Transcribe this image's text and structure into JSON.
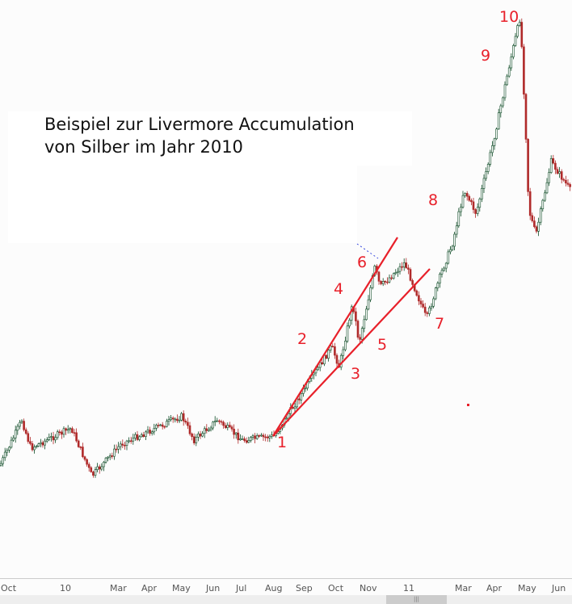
{
  "title_line1": "Beispiel zur Livermore Accumulation",
  "title_line2": "von Silber im Jahr 2010",
  "wave_labels": [
    "1",
    "2",
    "3",
    "4",
    "5",
    "6",
    "7",
    "8",
    "9",
    "10"
  ],
  "colors": {
    "up": "#0d4a25",
    "down": "#b02a2a",
    "annotation": "#e8202a"
  },
  "chart_data": {
    "type": "candlestick",
    "title": "",
    "xlabel": "",
    "ylabel": "",
    "grid": false,
    "x_tick_labels": [
      "Oct",
      "10",
      "Mar",
      "Apr",
      "May",
      "Jun",
      "Jul",
      "Aug",
      "Sep",
      "Oct",
      "Nov",
      "11",
      "Mar",
      "Apr",
      "May",
      "Jun"
    ],
    "price_path": [
      [
        "2009-09-25",
        16.0
      ],
      [
        "2009-10-24",
        18.7
      ],
      [
        "2009-11-08",
        16.6
      ],
      [
        "2010-01-10",
        18.1
      ],
      [
        "2010-02-01",
        14.5
      ],
      [
        "2010-03-04",
        16.9
      ],
      [
        "2010-05-01",
        19.0
      ],
      [
        "2010-05-13",
        17.2
      ],
      [
        "2010-06-05",
        18.7
      ],
      [
        "2010-07-01",
        17.2
      ],
      [
        "2010-08-02",
        17.5
      ],
      [
        "2010-09-27",
        24.2
      ],
      [
        "2010-10-04",
        22.7
      ],
      [
        "2010-10-17",
        27.5
      ],
      [
        "2010-10-23",
        24.5
      ],
      [
        "2010-11-11",
        30.2
      ],
      [
        "2010-11-19",
        28.7
      ],
      [
        "2010-12-27",
        30.5
      ],
      [
        "2011-01-21",
        26.3
      ],
      [
        "2011-02-05",
        29.6
      ],
      [
        "2011-02-18",
        32.0
      ],
      [
        "2011-03-02",
        36.0
      ],
      [
        "2011-03-14",
        34.2
      ],
      [
        "2011-03-30",
        39.3
      ],
      [
        "2011-04-15",
        45.4
      ],
      [
        "2011-04-25",
        49.0
      ],
      [
        "2011-04-30",
        40.5
      ],
      [
        "2011-05-03",
        34.5
      ],
      [
        "2011-05-10",
        32.6
      ],
      [
        "2011-05-25",
        38.1
      ],
      [
        "2011-06-15",
        35.7
      ],
      [
        "2011-06-28",
        33.3
      ]
    ]
  }
}
